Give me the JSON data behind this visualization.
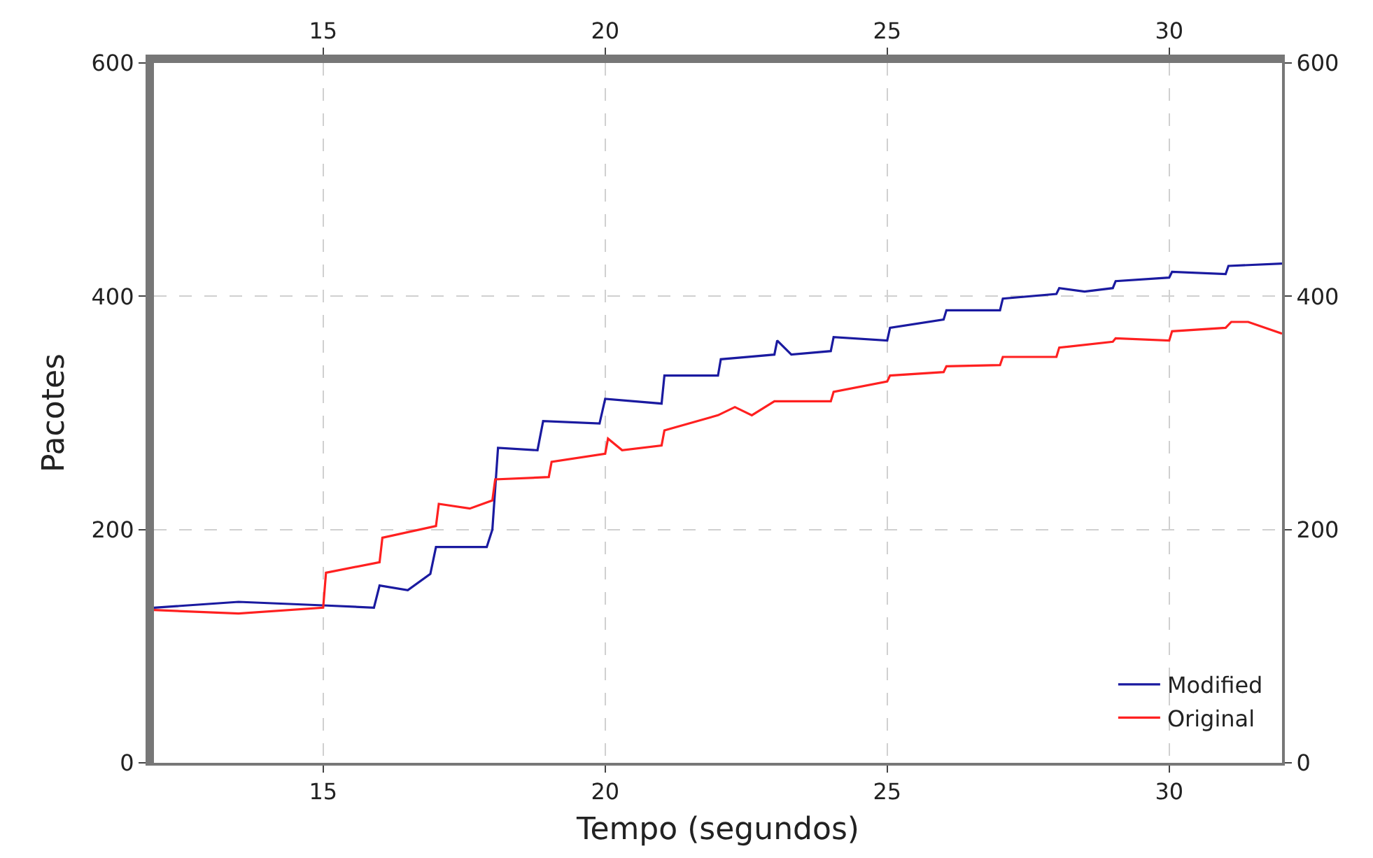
{
  "chart_data": {
    "type": "line",
    "xlabel": "Tempo (segundos)",
    "ylabel": "Pacotes",
    "xlim": [
      12,
      32
    ],
    "xticks": [
      15,
      20,
      25,
      30
    ],
    "x2lim": [
      12,
      32
    ],
    "x2ticks": [
      15,
      20,
      25,
      30
    ],
    "ylim": [
      0,
      600
    ],
    "yticks": [
      0,
      200,
      400,
      600
    ],
    "y2lim": [
      0,
      600
    ],
    "y2ticks": [
      0,
      200,
      400,
      600
    ],
    "grid": true,
    "legend": "bottom right",
    "marker": "none",
    "line_style": "solid",
    "series": [
      {
        "name": "Modified",
        "color": "#1a1aa0",
        "x": [
          12,
          13.5,
          15,
          15.9,
          16,
          16.5,
          16.9,
          17,
          17.9,
          18,
          18.1,
          18.8,
          18.9,
          19.9,
          20,
          21,
          21.05,
          22,
          22.05,
          23,
          23.05,
          23.3,
          24,
          24.05,
          25,
          25.05,
          26,
          26.05,
          27,
          27.05,
          28,
          28.05,
          28.5,
          29,
          29.05,
          30,
          30.05,
          31,
          31.05,
          32
        ],
        "values": [
          133,
          138,
          135,
          133,
          152,
          148,
          162,
          185,
          185,
          200,
          270,
          268,
          293,
          291,
          312,
          308,
          332,
          332,
          346,
          350,
          362,
          350,
          353,
          365,
          362,
          373,
          380,
          388,
          388,
          398,
          402,
          407,
          404,
          407,
          413,
          416,
          421,
          419,
          426,
          428
        ]
      },
      {
        "name": "Original",
        "color": "#ff2020",
        "x": [
          12,
          13.5,
          15,
          15.05,
          16,
          16.05,
          17,
          17.05,
          17.6,
          18,
          18.05,
          19,
          19.05,
          20,
          20.05,
          20.3,
          21,
          21.05,
          22,
          22.3,
          22.6,
          23,
          24,
          24.05,
          25,
          25.05,
          26,
          26.05,
          27,
          27.05,
          28,
          28.05,
          29,
          29.05,
          30,
          30.05,
          31,
          31.1,
          31.4,
          32
        ],
        "values": [
          131,
          128,
          133,
          163,
          172,
          193,
          203,
          222,
          218,
          225,
          243,
          245,
          258,
          265,
          278,
          268,
          272,
          285,
          298,
          305,
          298,
          310,
          310,
          318,
          327,
          332,
          335,
          340,
          341,
          348,
          348,
          356,
          361,
          364,
          362,
          370,
          373,
          378,
          378,
          368
        ]
      }
    ]
  }
}
